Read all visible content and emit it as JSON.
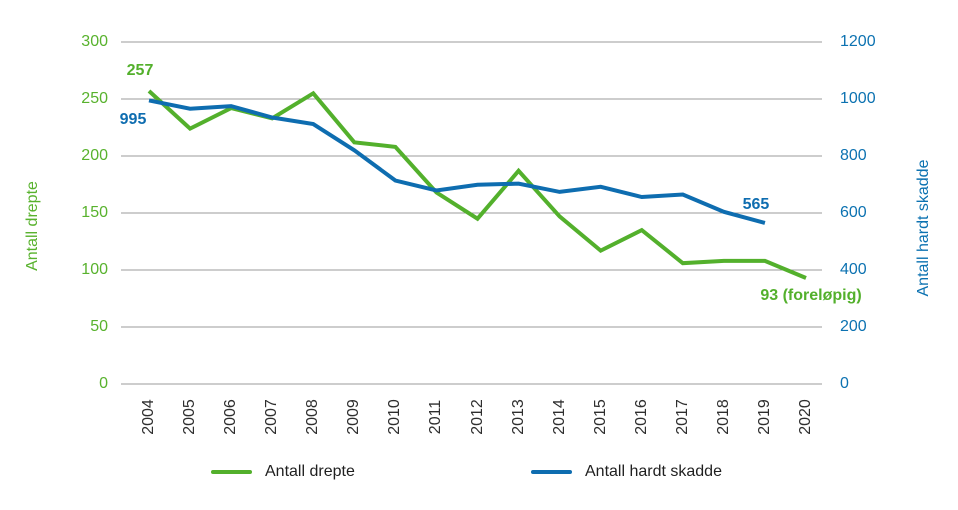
{
  "figure": {
    "background": "#ffffff"
  },
  "chart_data": {
    "type": "line",
    "title": "",
    "categories": [
      "2004",
      "2005",
      "2006",
      "2007",
      "2008",
      "2009",
      "2010",
      "2011",
      "2012",
      "2013",
      "2014",
      "2015",
      "2016",
      "2017",
      "2018",
      "2019",
      "2020"
    ],
    "series": [
      {
        "name": "Antall drepte",
        "axis": "left",
        "color": "#53B02C",
        "values": [
          257,
          224,
          242,
          233,
          255,
          212,
          208,
          168,
          145,
          187,
          147,
          117,
          135,
          106,
          108,
          108,
          93
        ]
      },
      {
        "name": "Antall hardt skadde",
        "axis": "right",
        "color": "#0E6DB0",
        "values": [
          995,
          966,
          975,
          935,
          912,
          820,
          714,
          679,
          699,
          703,
          674,
          692,
          656,
          665,
          604,
          565,
          null
        ]
      }
    ],
    "left_axis": {
      "label": "Antall drepte",
      "color": "#58B22D",
      "ticks": [
        300,
        250,
        200,
        150,
        100,
        50,
        0
      ],
      "range": [
        0,
        300
      ]
    },
    "right_axis": {
      "label": "Antall hardt skadde",
      "color": "#0C72B1",
      "ticks": [
        1200,
        1000,
        800,
        600,
        400,
        200,
        0
      ],
      "range": [
        0,
        1200
      ]
    },
    "x_axis": {
      "tick_rotation_deg": -90,
      "color": "#2e2e2e"
    },
    "grid": {
      "horizontal": true,
      "vertical": false,
      "color": "#9B9B9B"
    },
    "legend": {
      "position": "bottom",
      "items": [
        "Antall drepte",
        "Antall hardt skadde"
      ]
    },
    "annotations": [
      {
        "text": "257",
        "series": "Antall drepte",
        "category": "2004"
      },
      {
        "text": "995",
        "series": "Antall hardt skadde",
        "category": "2004"
      },
      {
        "text": "565",
        "series": "Antall hardt skadde",
        "category": "2019"
      },
      {
        "text": "93 (foreløpig)",
        "series": "Antall drepte",
        "category": "2020"
      }
    ]
  }
}
